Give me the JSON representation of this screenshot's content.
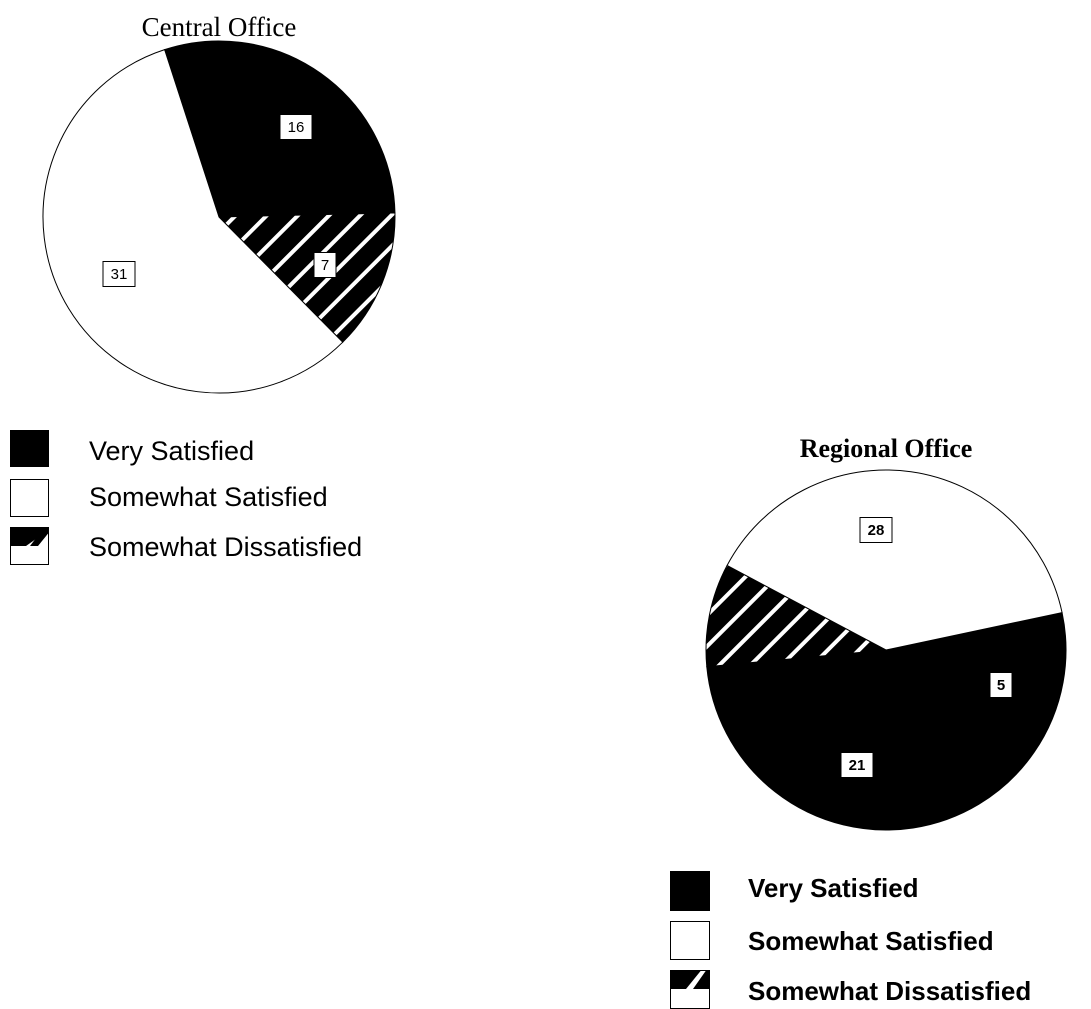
{
  "chart_data": [
    {
      "type": "pie",
      "title": "Central Office",
      "categories": [
        "Very Satisfied",
        "Somewhat Dissatisfied",
        "Somewhat Satisfied"
      ],
      "values": [
        16,
        7,
        31
      ],
      "legend": [
        "Very Satisfied",
        "Somewhat Satisfied",
        "Somewhat Dissatisfied"
      ],
      "legend_placement": "bottom-left"
    },
    {
      "type": "pie",
      "title": "Regional Office",
      "categories": [
        "Very Satisfied",
        "Somewhat Dissatisfied",
        "Somewhat Satisfied"
      ],
      "values": [
        28,
        5,
        21
      ],
      "legend": [
        "Very Satisfied",
        "Somewhat Satisfied",
        "Somewhat Dissatisfied"
      ],
      "legend_placement": "bottom"
    }
  ],
  "colors": {
    "very_satisfied": "#000000",
    "somewhat_satisfied": "#ffffff",
    "somewhat_dissatisfied": "hatch-black-white"
  }
}
